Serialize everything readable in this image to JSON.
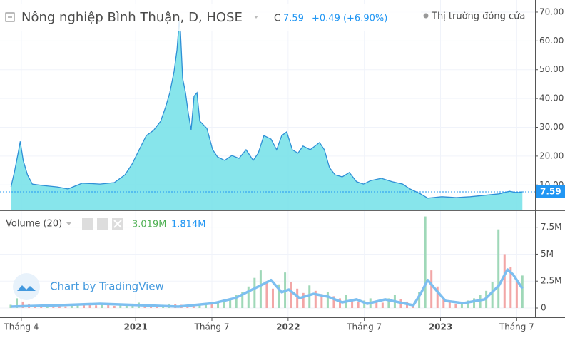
{
  "chart_data": [
    {
      "type": "area",
      "title": "Nông nghiệp Bình Thuận, D, HOSE",
      "close_prefix": "C",
      "close": 7.59,
      "change": "+0.49 (+6.90%)",
      "status": "Thị trường đóng cửa",
      "color": "#2e8fd6",
      "fill": "#72e1e8",
      "x": [
        2020.182,
        2020.206,
        2020.229,
        2020.243,
        2020.262,
        2020.29,
        2020.322,
        2020.393,
        2020.486,
        2020.556,
        2020.65,
        2020.766,
        2020.86,
        2020.93,
        2020.977,
        2021.023,
        2021.07,
        2021.117,
        2021.164,
        2021.196,
        2021.224,
        2021.252,
        2021.271,
        2021.285,
        2021.294,
        2021.308,
        2021.327,
        2021.346,
        2021.364,
        2021.383,
        2021.402,
        2021.421,
        2021.467,
        2021.505,
        2021.537,
        2021.584,
        2021.631,
        2021.678,
        2021.724,
        2021.771,
        2021.804,
        2021.841,
        2021.888,
        2021.925,
        2021.958,
        2021.991,
        2022.028,
        2022.065,
        2022.098,
        2022.145,
        2022.206,
        2022.238,
        2022.271,
        2022.308,
        2022.355,
        2022.402,
        2022.449,
        2022.495,
        2022.542,
        2022.612,
        2022.682,
        2022.752,
        2022.799,
        2022.869,
        2022.916,
        2023.009,
        2023.103,
        2023.196,
        2023.29,
        2023.383,
        2023.453,
        2023.5,
        2023.537
      ],
      "values": [
        9.3,
        14.8,
        21,
        25.1,
        18.5,
        13.5,
        10.3,
        9.8,
        9.3,
        8.6,
        10.6,
        10.3,
        10.8,
        13.5,
        17.3,
        22.2,
        27.1,
        28.9,
        32.1,
        37,
        42,
        49.4,
        56.9,
        66.8,
        63,
        47,
        42,
        34.6,
        29.1,
        40.8,
        42,
        32.1,
        29.6,
        22.2,
        19.7,
        18.5,
        20.2,
        19.2,
        22.2,
        18.5,
        21,
        27.1,
        25.9,
        22.2,
        27.1,
        28.4,
        22.2,
        21,
        23.5,
        22.2,
        24.7,
        22.2,
        16,
        13.5,
        12.8,
        14.3,
        11.1,
        10.3,
        11.5,
        12.3,
        11.1,
        10.3,
        8.6,
        6.9,
        5.4,
        5.9,
        5.6,
        5.9,
        6.4,
        6.9,
        7.8,
        7.3,
        7.59
      ],
      "xlim": [
        2020.11,
        2023.62
      ],
      "ylim": [
        1.4,
        74.2
      ],
      "yticks": [
        {
          "value": 10,
          "label": "10.00"
        },
        {
          "value": 20,
          "label": "20.00"
        },
        {
          "value": 30,
          "label": "30.00"
        },
        {
          "value": 40,
          "label": "40.00"
        },
        {
          "value": 50,
          "label": "50.00"
        },
        {
          "value": 60,
          "label": "60.00"
        },
        {
          "value": 70,
          "label": "70.00"
        }
      ],
      "xticks": [
        {
          "value": 2020.25,
          "label": "Tháng 4"
        },
        {
          "value": 2021,
          "label": "2021"
        },
        {
          "value": 2021.5,
          "label": "Tháng 7"
        },
        {
          "value": 2022,
          "label": "2022"
        },
        {
          "value": 2022.5,
          "label": "Tháng 7"
        },
        {
          "value": 2023,
          "label": "2023"
        },
        {
          "value": 2023.5,
          "label": "Tháng 7"
        }
      ],
      "grid": true
    },
    {
      "type": "bar",
      "title": "Volume (20)",
      "up_color": "#9fd8b8",
      "down_color": "#f2a6a6",
      "ma_color": "#7dbff0",
      "x": [
        2020.18,
        2020.22,
        2020.26,
        2020.3,
        2020.34,
        2020.38,
        2020.42,
        2020.46,
        2020.5,
        2020.54,
        2020.58,
        2020.62,
        2020.66,
        2020.7,
        2020.74,
        2020.78,
        2020.82,
        2020.86,
        2020.9,
        2020.94,
        2020.98,
        2021.02,
        2021.06,
        2021.1,
        2021.14,
        2021.18,
        2021.22,
        2021.26,
        2021.3,
        2021.34,
        2021.38,
        2021.42,
        2021.46,
        2021.5,
        2021.54,
        2021.58,
        2021.62,
        2021.66,
        2021.7,
        2021.74,
        2021.78,
        2021.82,
        2021.86,
        2021.9,
        2021.94,
        2021.98,
        2022.02,
        2022.06,
        2022.1,
        2022.14,
        2022.18,
        2022.22,
        2022.26,
        2022.3,
        2022.34,
        2022.38,
        2022.42,
        2022.46,
        2022.5,
        2022.54,
        2022.58,
        2022.62,
        2022.66,
        2022.7,
        2022.74,
        2022.78,
        2022.82,
        2022.86,
        2022.9,
        2022.94,
        2022.98,
        2023.02,
        2023.06,
        2023.1,
        2023.14,
        2023.18,
        2023.22,
        2023.26,
        2023.3,
        2023.34,
        2023.38,
        2023.42,
        2023.46,
        2023.5,
        2023.537
      ],
      "values": [
        300000,
        900000,
        600000,
        400000,
        250000,
        200000,
        300000,
        250000,
        200000,
        150000,
        300000,
        400000,
        350000,
        300000,
        250000,
        400000,
        350000,
        200000,
        250000,
        300000,
        400000,
        500000,
        350000,
        300000,
        250000,
        300000,
        400000,
        350000,
        300000,
        250000,
        200000,
        300000,
        400000,
        350000,
        500000,
        700000,
        900000,
        1200000,
        1500000,
        2000000,
        2800000,
        3500000,
        2500000,
        1800000,
        2200000,
        3300000,
        2400000,
        1800000,
        1400000,
        2100000,
        1600000,
        1300000,
        1500000,
        1100000,
        900000,
        1200000,
        800000,
        600000,
        700000,
        900000,
        700000,
        500000,
        900000,
        1200000,
        800000,
        600000,
        400000,
        1500000,
        8500000,
        3500000,
        2000000,
        900000,
        600000,
        400000,
        500000,
        700000,
        900000,
        1200000,
        1600000,
        2400000,
        7300000,
        5000000,
        3800000,
        2600000,
        3019000
      ],
      "ma_x": [
        2020.182,
        2020.486,
        2020.766,
        2021.047,
        2021.28,
        2021.514,
        2021.654,
        2021.748,
        2021.841,
        2021.888,
        2021.958,
        2022.005,
        2022.075,
        2022.168,
        2022.262,
        2022.355,
        2022.449,
        2022.519,
        2022.636,
        2022.729,
        2022.822,
        2022.869,
        2022.916,
        2022.963,
        2023.033,
        2023.15,
        2023.29,
        2023.383,
        2023.439,
        2023.477,
        2023.537
      ],
      "ma": [
        130000,
        260000,
        400000,
        260000,
        130000,
        460000,
        930000,
        1600000,
        2250000,
        2600000,
        1460000,
        1720000,
        930000,
        1320000,
        1060000,
        530000,
        800000,
        400000,
        800000,
        530000,
        260000,
        1320000,
        2600000,
        1800000,
        660000,
        460000,
        800000,
        2100000,
        3580000,
        3100000,
        1814000
      ],
      "legend_values": [
        {
          "value": 3019000,
          "label": "3.019M"
        },
        {
          "value": 1814000,
          "label": "1.814M"
        }
      ],
      "ylim": [
        -860000,
        9000000
      ],
      "yticks": [
        0,
        {
          "value": 2500000,
          "label": "2.5M"
        },
        {
          "value": 5000000,
          "label": "5M"
        },
        {
          "value": 7500000,
          "label": "7.5M"
        }
      ],
      "watermark": "Chart by TradingView"
    }
  ]
}
